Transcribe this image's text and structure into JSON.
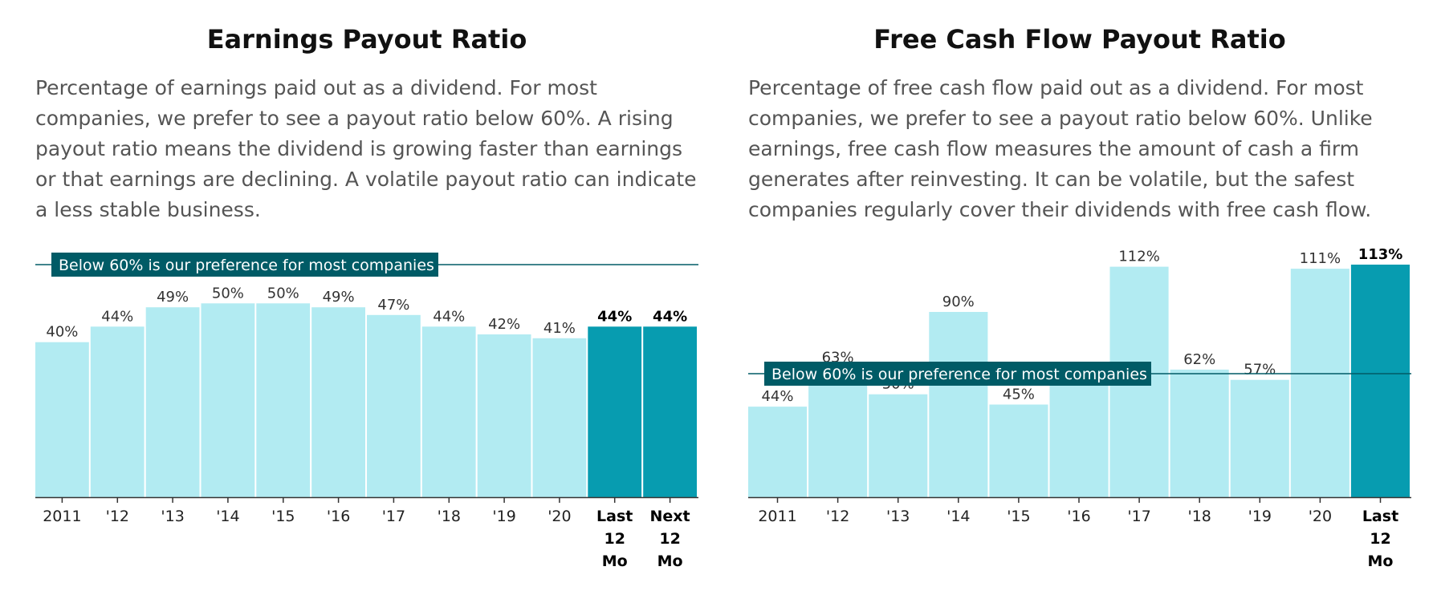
{
  "chart_data": [
    {
      "type": "bar",
      "title": "Earnings Payout Ratio",
      "description": "Percentage of earnings paid out as a dividend. For most companies, we prefer to see a payout ratio below 60%. A rising payout ratio means the dividend is growing faster than earnings or that earnings are declining. A volatile payout ratio can indicate a less stable business.",
      "categories": [
        "2011",
        "'12",
        "'13",
        "'14",
        "'15",
        "'16",
        "'17",
        "'18",
        "'19",
        "'20",
        [
          "Last",
          "12",
          "Mo"
        ],
        [
          "Next",
          "12",
          "Mo"
        ]
      ],
      "values": [
        40,
        44,
        49,
        50,
        50,
        49,
        47,
        44,
        42,
        41,
        44,
        44
      ],
      "value_labels": [
        "40%",
        "44%",
        "49%",
        "50%",
        "50%",
        "49%",
        "47%",
        "44%",
        "42%",
        "41%",
        "44%",
        "44%"
      ],
      "highlight": [
        false,
        false,
        false,
        false,
        false,
        false,
        false,
        false,
        false,
        false,
        true,
        true
      ],
      "reference_line": {
        "value": 60,
        "label": "Below 60% is our preference for most companies"
      },
      "ylim": [
        0,
        60
      ],
      "xlabel": "",
      "ylabel": "",
      "colors": {
        "bar": "#b2ebf2",
        "highlight": "#079cb0",
        "reference": "#005b66",
        "axis": "#333333"
      }
    },
    {
      "type": "bar",
      "title": "Free Cash Flow Payout Ratio",
      "description": "Percentage of free cash flow paid out as a dividend. For most companies, we prefer to see a payout ratio below 60%. Unlike earnings, free cash flow measures the amount of cash a firm generates after reinvesting. It can be volatile, but the safest companies regularly cover their dividends with free cash flow.",
      "categories": [
        "2011",
        "'12",
        "'13",
        "'14",
        "'15",
        "'16",
        "'17",
        "'18",
        "'19",
        "'20",
        [
          "Last",
          "12",
          "Mo"
        ]
      ],
      "values": [
        44,
        63,
        50,
        90,
        45,
        60,
        112,
        62,
        57,
        111,
        113
      ],
      "value_labels": [
        "44%",
        "63%",
        "50%",
        "90%",
        "45%",
        "",
        "112%",
        "62%",
        "57%",
        "111%",
        "113%"
      ],
      "highlight": [
        false,
        false,
        false,
        false,
        false,
        false,
        false,
        false,
        false,
        false,
        true
      ],
      "reference_line": {
        "value": 60,
        "label": "Below 60% is our preference for most companies"
      },
      "ylim": [
        0,
        113
      ],
      "xlabel": "",
      "ylabel": "",
      "colors": {
        "bar": "#b2ebf2",
        "highlight": "#079cb0",
        "reference": "#005b66",
        "axis": "#333333"
      }
    }
  ]
}
